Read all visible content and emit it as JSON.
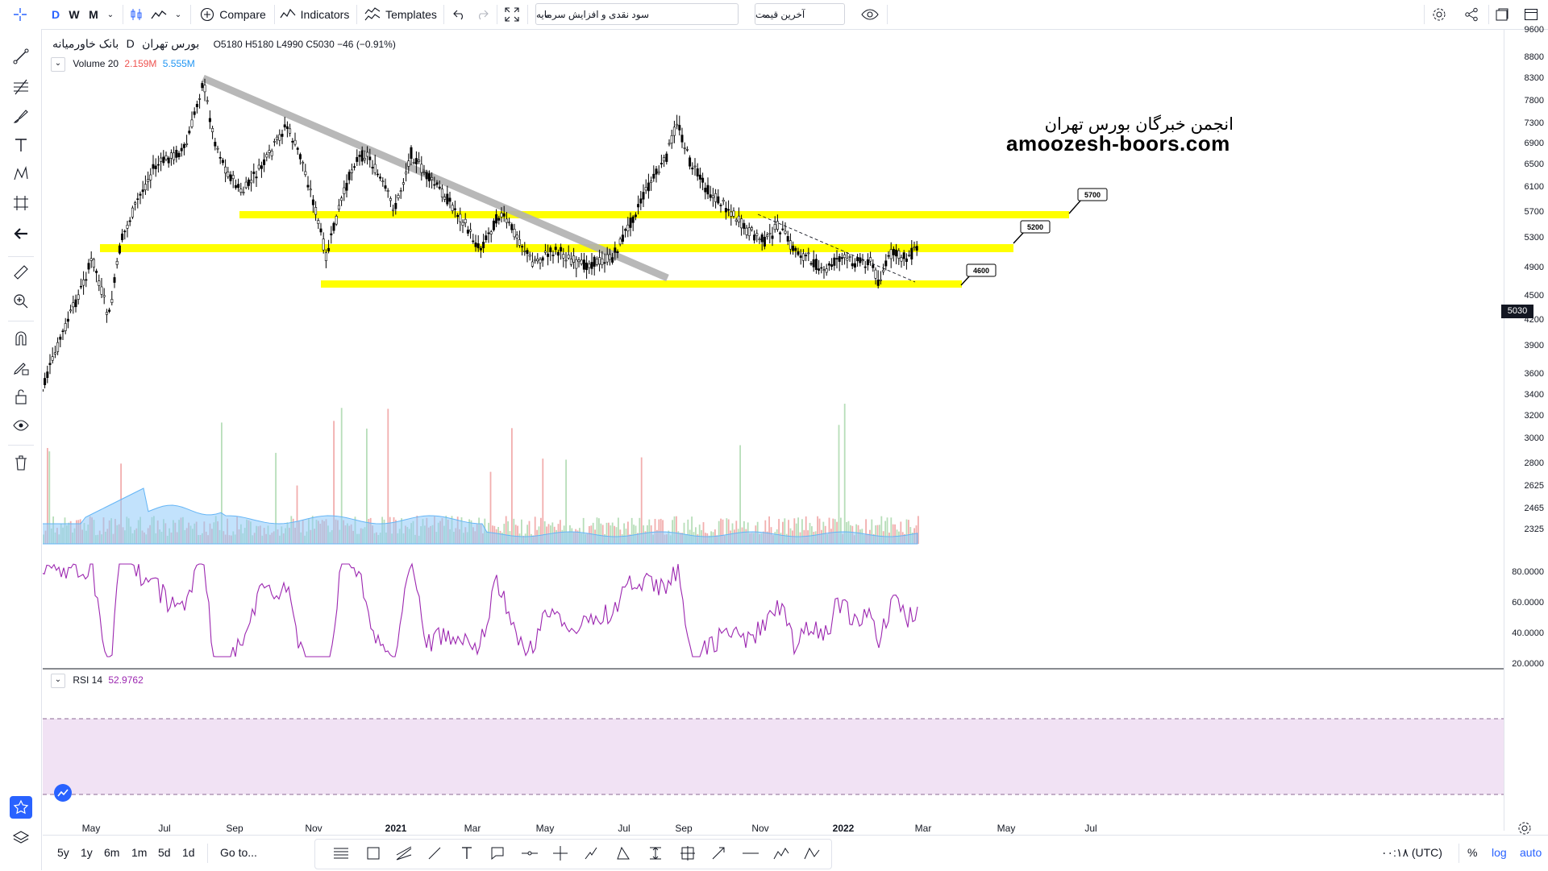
{
  "toolbar": {
    "intervals": [
      "D",
      "W",
      "M"
    ],
    "compare": "Compare",
    "indicators": "Indicators",
    "templates": "Templates",
    "symbol_dropdown": "سود نقدی و افزایش سرمایه",
    "price_dropdown": "آخرین قیمت"
  },
  "legend": {
    "symbol": "بانک خاورمیانه",
    "interval": "D",
    "exchange": "بورس تهران",
    "open": "O5180",
    "high": "H5180",
    "low": "L4990",
    "close": "C5030",
    "change": "−46 (−0.91%)",
    "volume_label": "Volume 20",
    "volume_val1": "2.159M",
    "volume_val2": "5.555M",
    "rsi_label": "RSI 14",
    "rsi_value": "52.9762"
  },
  "watermark": {
    "line1": "انجمن خبرگان بورس تهران",
    "line2": "amoozesh-boors.com"
  },
  "callouts": [
    "5700",
    "5200",
    "4600"
  ],
  "price_axis": [
    "9600",
    "8800",
    "8300",
    "7800",
    "7300",
    "6900",
    "6500",
    "6100",
    "5700",
    "5300",
    "4900",
    "4500",
    "4200",
    "3900",
    "3600",
    "3400",
    "3200",
    "3000",
    "2800",
    "2625",
    "2465",
    "2325"
  ],
  "current_price": "5030",
  "rsi_axis": [
    "80.0000",
    "60.0000",
    "40.0000",
    "20.0000"
  ],
  "time_axis": [
    "May",
    "Jul",
    "Sep",
    "Nov",
    "2021",
    "Mar",
    "May",
    "Jul",
    "Sep",
    "Nov",
    "2022",
    "Mar",
    "May",
    "Jul"
  ],
  "bottom": {
    "ranges": [
      "5y",
      "1y",
      "6m",
      "1m",
      "5d",
      "1d"
    ],
    "goto": "Go to...",
    "time": "۰۰:۱۸ (UTC)",
    "percent": "%",
    "log": "log",
    "auto": "auto"
  },
  "colors": {
    "highlight": "#ffff00",
    "trendline": "#b0b0b0",
    "rsi_line": "#9c27b0",
    "rsi_band": "#f1e2f4",
    "vol_up": "#a5d6a7",
    "vol_down": "#ef9a9a",
    "vol_ma": "#90caf9",
    "accent": "#2962ff"
  }
}
